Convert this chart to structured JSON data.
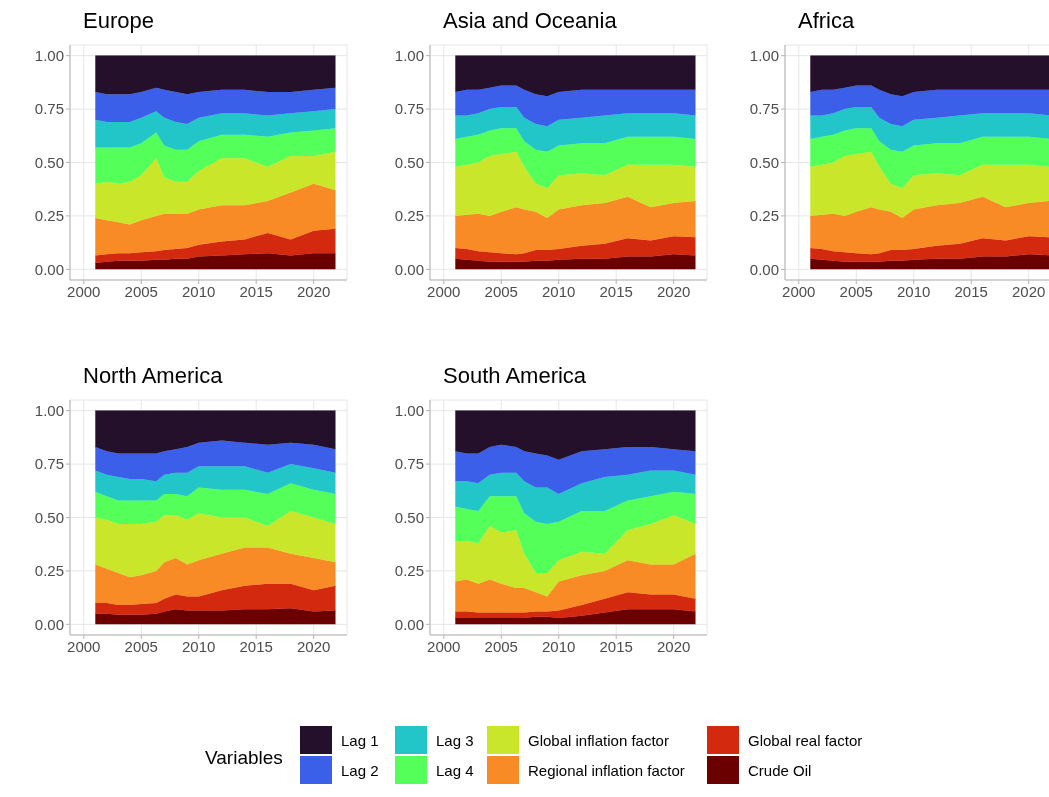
{
  "chart_data": [
    {
      "type": "area",
      "stacked": true,
      "title": "Europe",
      "legend": "bottom",
      "legend_title": "Variables",
      "grid": true,
      "x": [
        2001,
        2002,
        2003,
        2004,
        2005,
        2006.3,
        2007,
        2008,
        2009,
        2010,
        2012,
        2014,
        2016,
        2018,
        2020,
        2021.9
      ],
      "xlim": [
        1998.8,
        2022.9
      ],
      "xticks": [
        2000,
        2005,
        2010,
        2015,
        2020
      ],
      "ylim": [
        -0.05,
        1.05
      ],
      "yticks": [
        {
          "value": 0,
          "label": "0.00"
        },
        {
          "value": 0.25,
          "label": "0.25"
        },
        {
          "value": 0.5,
          "label": "0.50"
        },
        {
          "value": 0.75,
          "label": "0.75"
        },
        {
          "value": 1,
          "label": "1.00"
        }
      ],
      "series": [
        {
          "name": "Crude Oil",
          "color": "#6a0000",
          "values": [
            0.03,
            0.035,
            0.04,
            0.04,
            0.04,
            0.045,
            0.045,
            0.05,
            0.05,
            0.06,
            0.065,
            0.07,
            0.075,
            0.065,
            0.075,
            0.075
          ]
        },
        {
          "name": "Global real factor",
          "color": "#d3290e",
          "values": [
            0.035,
            0.035,
            0.035,
            0.035,
            0.04,
            0.04,
            0.045,
            0.045,
            0.05,
            0.055,
            0.065,
            0.07,
            0.095,
            0.075,
            0.105,
            0.115
          ]
        },
        {
          "name": "Regional inflation factor",
          "color": "#f88b26",
          "values": [
            0.175,
            0.16,
            0.145,
            0.135,
            0.15,
            0.165,
            0.17,
            0.165,
            0.16,
            0.165,
            0.17,
            0.16,
            0.15,
            0.22,
            0.22,
            0.18
          ]
        },
        {
          "name": "Global inflation factor",
          "color": "#c9e62b",
          "values": [
            0.16,
            0.18,
            0.18,
            0.2,
            0.21,
            0.27,
            0.17,
            0.15,
            0.15,
            0.18,
            0.22,
            0.22,
            0.16,
            0.17,
            0.13,
            0.18
          ]
        },
        {
          "name": "Lag 4",
          "color": "#55ff5a",
          "values": [
            0.17,
            0.16,
            0.17,
            0.16,
            0.15,
            0.12,
            0.15,
            0.15,
            0.15,
            0.14,
            0.11,
            0.11,
            0.14,
            0.11,
            0.12,
            0.11
          ]
        },
        {
          "name": "Lag 3",
          "color": "#22c5c8",
          "values": [
            0.13,
            0.12,
            0.12,
            0.12,
            0.12,
            0.1,
            0.13,
            0.13,
            0.12,
            0.11,
            0.1,
            0.1,
            0.1,
            0.09,
            0.09,
            0.09
          ]
        },
        {
          "name": "Lag 2",
          "color": "#3b5fe8",
          "values": [
            0.13,
            0.13,
            0.13,
            0.13,
            0.12,
            0.11,
            0.13,
            0.14,
            0.14,
            0.12,
            0.11,
            0.11,
            0.11,
            0.1,
            0.1,
            0.1
          ]
        },
        {
          "name": "Lag 1",
          "color": "#25102b",
          "values": [
            0.17,
            0.18,
            0.18,
            0.18,
            0.17,
            0.15,
            0.16,
            0.17,
            0.18,
            0.17,
            0.16,
            0.16,
            0.17,
            0.17,
            0.16,
            0.15
          ]
        }
      ]
    },
    {
      "type": "area",
      "stacked": true,
      "title": "Asia and Oceania",
      "grid": true,
      "x": [
        2001,
        2002,
        2003,
        2004,
        2005,
        2006.3,
        2007,
        2008,
        2009,
        2010,
        2012,
        2014,
        2016,
        2018,
        2020,
        2021.9
      ],
      "xlim": [
        1998.8,
        2022.9
      ],
      "xticks": [
        2000,
        2005,
        2010,
        2015,
        2020
      ],
      "ylim": [
        -0.05,
        1.05
      ],
      "yticks": [
        {
          "value": 0,
          "label": "0.00"
        },
        {
          "value": 0.25,
          "label": "0.25"
        },
        {
          "value": 0.5,
          "label": "0.50"
        },
        {
          "value": 0.75,
          "label": "0.75"
        },
        {
          "value": 1,
          "label": "1.00"
        }
      ],
      "series": [
        {
          "color": "#6a0000",
          "values": [
            0.05,
            0.045,
            0.04,
            0.035,
            0.035,
            0.035,
            0.035,
            0.04,
            0.04,
            0.045,
            0.05,
            0.05,
            0.06,
            0.06,
            0.07,
            0.065
          ]
        },
        {
          "color": "#d3290e",
          "values": [
            0.05,
            0.05,
            0.045,
            0.045,
            0.04,
            0.035,
            0.04,
            0.05,
            0.05,
            0.05,
            0.06,
            0.07,
            0.085,
            0.075,
            0.085,
            0.085
          ]
        },
        {
          "color": "#f88b26",
          "values": [
            0.15,
            0.16,
            0.175,
            0.17,
            0.195,
            0.22,
            0.205,
            0.18,
            0.15,
            0.185,
            0.19,
            0.19,
            0.195,
            0.155,
            0.155,
            0.17
          ]
        },
        {
          "color": "#c9e62b",
          "values": [
            0.23,
            0.235,
            0.24,
            0.28,
            0.27,
            0.26,
            0.2,
            0.13,
            0.14,
            0.16,
            0.15,
            0.13,
            0.15,
            0.2,
            0.18,
            0.16
          ]
        },
        {
          "color": "#55ff5a",
          "values": [
            0.13,
            0.13,
            0.13,
            0.12,
            0.12,
            0.11,
            0.12,
            0.16,
            0.17,
            0.14,
            0.14,
            0.15,
            0.13,
            0.13,
            0.13,
            0.13
          ]
        },
        {
          "color": "#22c5c8",
          "values": [
            0.11,
            0.1,
            0.1,
            0.1,
            0.1,
            0.1,
            0.11,
            0.12,
            0.12,
            0.12,
            0.12,
            0.13,
            0.11,
            0.11,
            0.11,
            0.11
          ]
        },
        {
          "color": "#3b5fe8",
          "values": [
            0.11,
            0.12,
            0.11,
            0.1,
            0.1,
            0.1,
            0.13,
            0.14,
            0.14,
            0.13,
            0.13,
            0.12,
            0.11,
            0.11,
            0.11,
            0.12
          ]
        },
        {
          "color": "#25102b",
          "values": [
            0.17,
            0.16,
            0.16,
            0.15,
            0.14,
            0.14,
            0.16,
            0.18,
            0.19,
            0.17,
            0.16,
            0.16,
            0.16,
            0.16,
            0.16,
            0.16
          ]
        }
      ]
    },
    {
      "type": "area",
      "stacked": true,
      "title": "Africa",
      "grid": true,
      "x": [
        2001,
        2002,
        2003,
        2004,
        2005,
        2006.3,
        2007,
        2008,
        2009,
        2010,
        2012,
        2014,
        2016,
        2018,
        2020,
        2021.9
      ],
      "xlim": [
        1998.8,
        2022.9
      ],
      "xticks": [
        2000,
        2005,
        2010,
        2015,
        2020
      ],
      "ylim": [
        -0.05,
        1.05
      ],
      "yticks": [
        {
          "value": 0,
          "label": "0.00"
        },
        {
          "value": 0.25,
          "label": "0.25"
        },
        {
          "value": 0.5,
          "label": "0.50"
        },
        {
          "value": 0.75,
          "label": "0.75"
        },
        {
          "value": 1,
          "label": "1.00"
        }
      ],
      "series": [
        {
          "color": "#6a0000",
          "values": [
            0.05,
            0.045,
            0.04,
            0.035,
            0.035,
            0.035,
            0.035,
            0.04,
            0.04,
            0.045,
            0.05,
            0.05,
            0.06,
            0.06,
            0.07,
            0.065
          ]
        },
        {
          "color": "#d3290e",
          "values": [
            0.05,
            0.05,
            0.045,
            0.045,
            0.04,
            0.035,
            0.04,
            0.05,
            0.05,
            0.05,
            0.06,
            0.07,
            0.085,
            0.075,
            0.085,
            0.085
          ]
        },
        {
          "color": "#f88b26",
          "values": [
            0.15,
            0.16,
            0.175,
            0.17,
            0.195,
            0.22,
            0.205,
            0.18,
            0.15,
            0.185,
            0.19,
            0.19,
            0.195,
            0.155,
            0.155,
            0.17
          ]
        },
        {
          "color": "#c9e62b",
          "values": [
            0.23,
            0.235,
            0.24,
            0.28,
            0.27,
            0.26,
            0.2,
            0.13,
            0.14,
            0.16,
            0.15,
            0.13,
            0.15,
            0.2,
            0.18,
            0.16
          ]
        },
        {
          "color": "#55ff5a",
          "values": [
            0.13,
            0.13,
            0.13,
            0.12,
            0.12,
            0.11,
            0.12,
            0.16,
            0.17,
            0.14,
            0.14,
            0.15,
            0.13,
            0.13,
            0.13,
            0.13
          ]
        },
        {
          "color": "#22c5c8",
          "values": [
            0.11,
            0.1,
            0.1,
            0.1,
            0.1,
            0.1,
            0.11,
            0.12,
            0.12,
            0.12,
            0.12,
            0.13,
            0.11,
            0.11,
            0.11,
            0.11
          ]
        },
        {
          "color": "#3b5fe8",
          "values": [
            0.11,
            0.12,
            0.11,
            0.1,
            0.1,
            0.1,
            0.13,
            0.14,
            0.14,
            0.13,
            0.13,
            0.12,
            0.11,
            0.11,
            0.11,
            0.12
          ]
        },
        {
          "color": "#25102b",
          "values": [
            0.17,
            0.16,
            0.16,
            0.15,
            0.14,
            0.14,
            0.16,
            0.18,
            0.19,
            0.17,
            0.16,
            0.16,
            0.16,
            0.16,
            0.16,
            0.16
          ]
        }
      ]
    },
    {
      "type": "area",
      "stacked": true,
      "title": "North America",
      "grid": true,
      "x": [
        2001,
        2002,
        2003,
        2004,
        2005,
        2006.3,
        2007,
        2008,
        2009,
        2010,
        2012,
        2014,
        2016,
        2018,
        2020,
        2021.9
      ],
      "xlim": [
        1998.8,
        2022.9
      ],
      "xticks": [
        2000,
        2005,
        2010,
        2015,
        2020
      ],
      "ylim": [
        -0.05,
        1.05
      ],
      "yticks": [
        {
          "value": 0,
          "label": "0.00"
        },
        {
          "value": 0.25,
          "label": "0.25"
        },
        {
          "value": 0.5,
          "label": "0.50"
        },
        {
          "value": 0.75,
          "label": "0.75"
        },
        {
          "value": 1,
          "label": "1.00"
        }
      ],
      "series": [
        {
          "color": "#6a0000",
          "values": [
            0.05,
            0.05,
            0.045,
            0.045,
            0.045,
            0.05,
            0.06,
            0.07,
            0.065,
            0.065,
            0.065,
            0.07,
            0.07,
            0.075,
            0.06,
            0.065
          ]
        },
        {
          "color": "#d3290e",
          "values": [
            0.05,
            0.05,
            0.045,
            0.045,
            0.05,
            0.05,
            0.06,
            0.07,
            0.065,
            0.065,
            0.095,
            0.11,
            0.12,
            0.115,
            0.1,
            0.115
          ]
        },
        {
          "color": "#f88b26",
          "values": [
            0.18,
            0.16,
            0.15,
            0.13,
            0.135,
            0.15,
            0.17,
            0.17,
            0.15,
            0.17,
            0.17,
            0.18,
            0.17,
            0.14,
            0.15,
            0.11
          ]
        },
        {
          "color": "#c9e62b",
          "values": [
            0.22,
            0.23,
            0.23,
            0.25,
            0.24,
            0.23,
            0.22,
            0.2,
            0.21,
            0.22,
            0.17,
            0.14,
            0.1,
            0.2,
            0.19,
            0.18
          ]
        },
        {
          "color": "#55ff5a",
          "values": [
            0.12,
            0.11,
            0.11,
            0.11,
            0.11,
            0.1,
            0.1,
            0.1,
            0.11,
            0.12,
            0.13,
            0.13,
            0.15,
            0.13,
            0.13,
            0.14
          ]
        },
        {
          "color": "#22c5c8",
          "values": [
            0.1,
            0.1,
            0.11,
            0.1,
            0.1,
            0.09,
            0.09,
            0.1,
            0.11,
            0.1,
            0.11,
            0.11,
            0.1,
            0.09,
            0.1,
            0.1
          ]
        },
        {
          "color": "#3b5fe8",
          "values": [
            0.11,
            0.11,
            0.11,
            0.12,
            0.12,
            0.13,
            0.11,
            0.11,
            0.12,
            0.11,
            0.12,
            0.11,
            0.13,
            0.1,
            0.11,
            0.11
          ]
        },
        {
          "color": "#25102b",
          "values": [
            0.17,
            0.19,
            0.2,
            0.2,
            0.2,
            0.2,
            0.19,
            0.18,
            0.17,
            0.15,
            0.14,
            0.15,
            0.16,
            0.15,
            0.16,
            0.18
          ]
        }
      ]
    },
    {
      "type": "area",
      "stacked": true,
      "title": "South America",
      "grid": true,
      "x": [
        2001,
        2002,
        2003,
        2004,
        2005,
        2006.3,
        2007,
        2008,
        2009,
        2010,
        2012,
        2014,
        2016,
        2018,
        2020,
        2021.9
      ],
      "xlim": [
        1998.8,
        2022.9
      ],
      "xticks": [
        2000,
        2005,
        2010,
        2015,
        2020
      ],
      "ylim": [
        -0.05,
        1.05
      ],
      "yticks": [
        {
          "value": 0,
          "label": "0.00"
        },
        {
          "value": 0.25,
          "label": "0.25"
        },
        {
          "value": 0.5,
          "label": "0.50"
        },
        {
          "value": 0.75,
          "label": "0.75"
        },
        {
          "value": 1,
          "label": "1.00"
        }
      ],
      "series": [
        {
          "color": "#6a0000",
          "values": [
            0.03,
            0.03,
            0.03,
            0.03,
            0.03,
            0.03,
            0.03,
            0.035,
            0.035,
            0.03,
            0.04,
            0.055,
            0.07,
            0.07,
            0.07,
            0.06
          ]
        },
        {
          "color": "#d3290e",
          "values": [
            0.03,
            0.03,
            0.025,
            0.025,
            0.025,
            0.025,
            0.025,
            0.025,
            0.025,
            0.035,
            0.05,
            0.065,
            0.08,
            0.07,
            0.07,
            0.06
          ]
        },
        {
          "color": "#f88b26",
          "values": [
            0.14,
            0.15,
            0.135,
            0.155,
            0.135,
            0.115,
            0.115,
            0.09,
            0.07,
            0.135,
            0.14,
            0.13,
            0.15,
            0.14,
            0.14,
            0.21
          ]
        },
        {
          "color": "#c9e62b",
          "values": [
            0.19,
            0.18,
            0.19,
            0.25,
            0.24,
            0.27,
            0.16,
            0.09,
            0.11,
            0.1,
            0.11,
            0.08,
            0.14,
            0.19,
            0.23,
            0.14
          ]
        },
        {
          "color": "#55ff5a",
          "values": [
            0.16,
            0.15,
            0.15,
            0.14,
            0.17,
            0.16,
            0.19,
            0.24,
            0.23,
            0.18,
            0.19,
            0.2,
            0.14,
            0.13,
            0.11,
            0.14
          ]
        },
        {
          "color": "#22c5c8",
          "values": [
            0.12,
            0.13,
            0.13,
            0.1,
            0.11,
            0.11,
            0.15,
            0.16,
            0.17,
            0.13,
            0.13,
            0.16,
            0.12,
            0.12,
            0.1,
            0.09
          ]
        },
        {
          "color": "#3b5fe8",
          "values": [
            0.14,
            0.13,
            0.14,
            0.13,
            0.13,
            0.12,
            0.14,
            0.16,
            0.15,
            0.16,
            0.15,
            0.13,
            0.13,
            0.11,
            0.1,
            0.11
          ]
        },
        {
          "color": "#25102b",
          "values": [
            0.19,
            0.2,
            0.2,
            0.17,
            0.16,
            0.17,
            0.19,
            0.2,
            0.21,
            0.23,
            0.19,
            0.18,
            0.17,
            0.17,
            0.18,
            0.19
          ]
        }
      ]
    }
  ]
}
